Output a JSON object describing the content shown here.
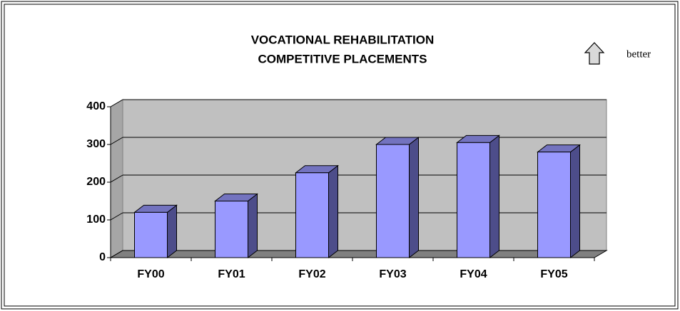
{
  "chart_data": {
    "type": "bar3d",
    "title_lines": [
      "VOCATIONAL REHABILITATION",
      "COMPETITIVE PLACEMENTS"
    ],
    "annotation": "better",
    "categories": [
      "FY00",
      "FY01",
      "FY02",
      "FY03",
      "FY04",
      "FY05"
    ],
    "values": [
      120,
      150,
      225,
      300,
      305,
      280
    ],
    "color": "#9999ff",
    "ylim": [
      0,
      400
    ],
    "yticks": [
      0,
      100,
      200,
      300,
      400
    ],
    "grid": true
  }
}
